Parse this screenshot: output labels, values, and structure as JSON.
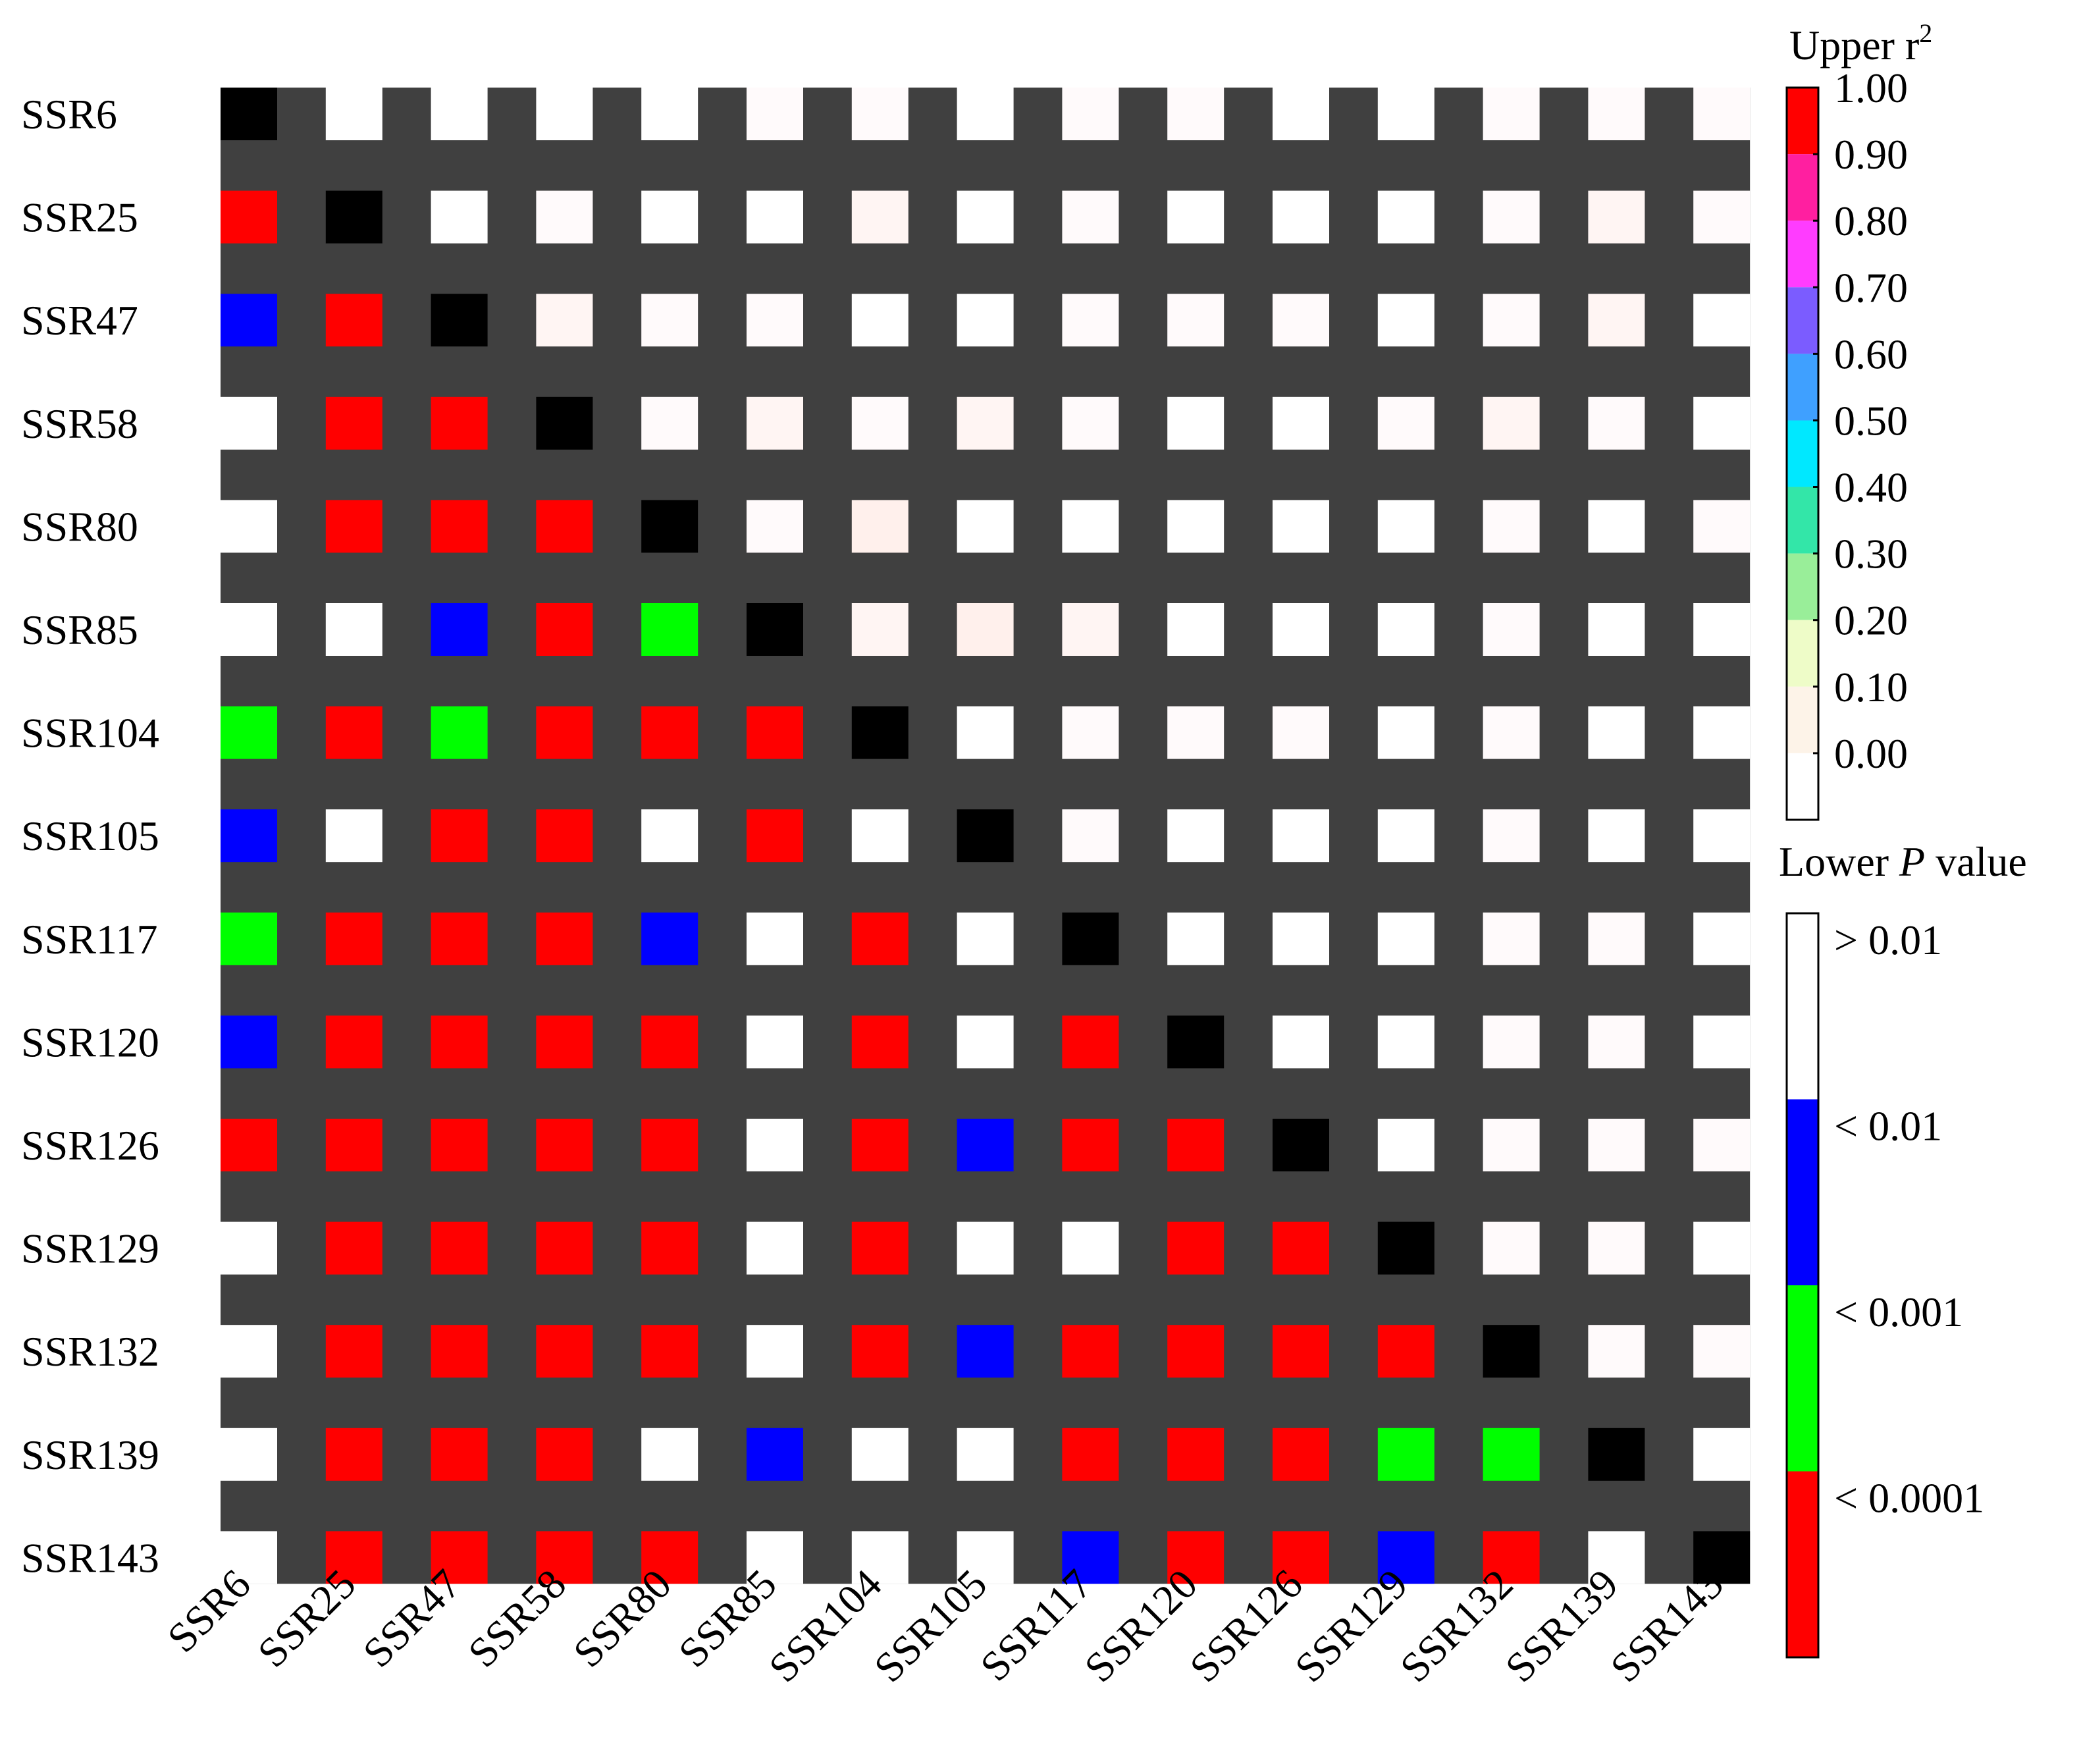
{
  "chart_data": {
    "type": "heatmap",
    "markers": [
      "SSR6",
      "SSR25",
      "SSR47",
      "SSR58",
      "SSR80",
      "SSR85",
      "SSR104",
      "SSR105",
      "SSR117",
      "SSR120",
      "SSR126",
      "SSR129",
      "SSR132",
      "SSR139",
      "SSR143"
    ],
    "upper_legend": {
      "title": "Upper r",
      "title_sup": "2",
      "ticks": [
        "1.00",
        "0.90",
        "0.80",
        "0.70",
        "0.60",
        "0.50",
        "0.40",
        "0.30",
        "0.20",
        "0.10",
        "0.00"
      ],
      "colors": [
        "#ff0000",
        "#ff1fa0",
        "#ff3cff",
        "#7b5cff",
        "#3fa0ff",
        "#00e8ff",
        "#33e6a8",
        "#99ee99",
        "#eefcc8",
        "#fdf3e8",
        "#ffffff"
      ]
    },
    "lower_legend": {
      "title_prefix": "Lower ",
      "title_italic": "P",
      "title_suffix": " value",
      "labels": [
        "> 0.01",
        "< 0.01",
        "< 0.001",
        "< 0.0001"
      ],
      "colors": [
        "#ffffff",
        "#0000ff",
        "#00ff00",
        "#ff0000"
      ]
    },
    "grid_color": "#404040",
    "diagonal_color": "#000000",
    "upper_colors": {
      "a": "#ffffff",
      "b": "#fffafb",
      "c": "#fff5f3",
      "d": "#fff0ec"
    },
    "matrix": [
      [
        "D",
        "a",
        "a",
        "a",
        "a",
        "b",
        "b",
        "a",
        "b",
        "b",
        "a",
        "a",
        "b",
        "b",
        "b"
      ],
      [
        "R",
        "D",
        "a",
        "b",
        "a",
        "a",
        "c",
        "a",
        "b",
        "a",
        "a",
        "a",
        "b",
        "c",
        "b"
      ],
      [
        "B",
        "R",
        "D",
        "c",
        "b",
        "b",
        "a",
        "a",
        "b",
        "b",
        "b",
        "a",
        "b",
        "c",
        "a"
      ],
      [
        "W",
        "R",
        "R",
        "D",
        "b",
        "c",
        "b",
        "c",
        "b",
        "a",
        "a",
        "b",
        "c",
        "b",
        "a"
      ],
      [
        "W",
        "R",
        "R",
        "R",
        "D",
        "b",
        "d",
        "a",
        "a",
        "a",
        "a",
        "a",
        "b",
        "a",
        "b"
      ],
      [
        "W",
        "W",
        "B",
        "R",
        "G",
        "D",
        "c",
        "d",
        "c",
        "a",
        "a",
        "a",
        "b",
        "a",
        "a"
      ],
      [
        "G",
        "R",
        "G",
        "R",
        "R",
        "R",
        "D",
        "a",
        "b",
        "b",
        "b",
        "a",
        "b",
        "a",
        "a"
      ],
      [
        "B",
        "W",
        "R",
        "R",
        "W",
        "R",
        "W",
        "D",
        "b",
        "a",
        "a",
        "a",
        "b",
        "a",
        "a"
      ],
      [
        "G",
        "R",
        "R",
        "R",
        "B",
        "W",
        "R",
        "W",
        "D",
        "a",
        "a",
        "a",
        "b",
        "b",
        "a"
      ],
      [
        "B",
        "R",
        "R",
        "R",
        "R",
        "W",
        "R",
        "W",
        "R",
        "D",
        "a",
        "a",
        "b",
        "b",
        "a"
      ],
      [
        "R",
        "R",
        "R",
        "R",
        "R",
        "W",
        "R",
        "B",
        "R",
        "R",
        "D",
        "a",
        "b",
        "b",
        "b"
      ],
      [
        "W",
        "R",
        "R",
        "R",
        "R",
        "W",
        "R",
        "W",
        "W",
        "R",
        "R",
        "D",
        "b",
        "b",
        "a"
      ],
      [
        "W",
        "R",
        "R",
        "R",
        "R",
        "W",
        "R",
        "B",
        "R",
        "R",
        "R",
        "R",
        "D",
        "b",
        "b"
      ],
      [
        "W",
        "R",
        "R",
        "R",
        "W",
        "B",
        "W",
        "W",
        "R",
        "R",
        "R",
        "G",
        "G",
        "D",
        "a"
      ],
      [
        "W",
        "R",
        "R",
        "R",
        "R",
        "W",
        "W",
        "W",
        "B",
        "R",
        "R",
        "B",
        "R",
        "W",
        "D"
      ]
    ],
    "lower_color_key": {
      "W": "#ffffff",
      "B": "#0000ff",
      "G": "#00ff00",
      "R": "#ff0000"
    }
  }
}
